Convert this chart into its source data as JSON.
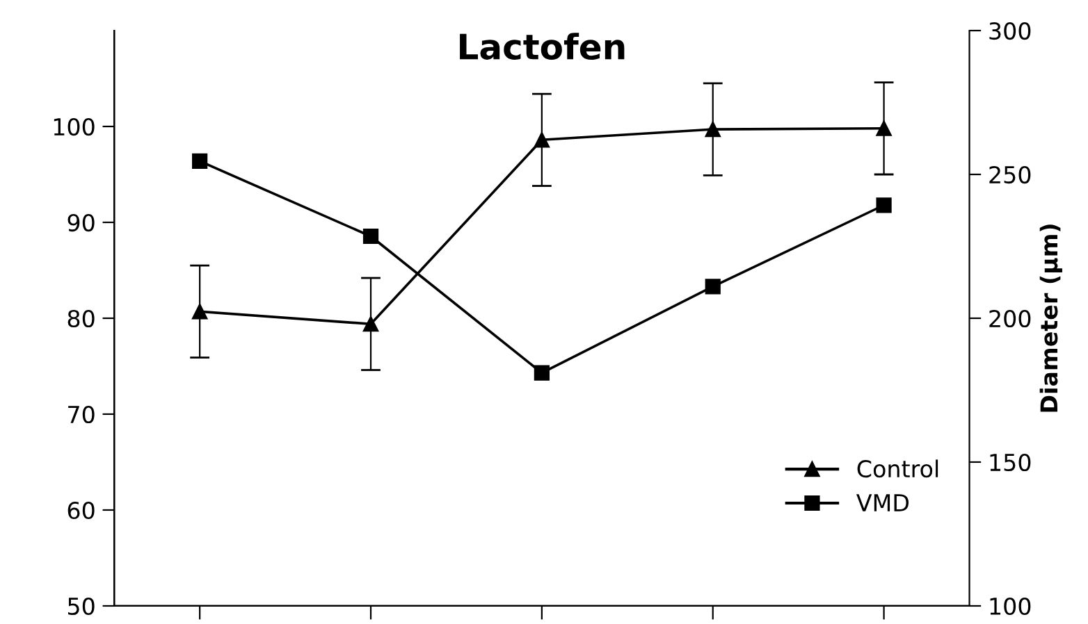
{
  "chart_data": {
    "type": "line",
    "title": "Lactofen",
    "y2label": "Diameter (µm)",
    "categories": [
      null,
      null,
      null,
      null,
      null
    ],
    "series": [
      {
        "name": "Control",
        "color": "#000000",
        "marker": "triangle",
        "values": [
          80.7,
          79.4,
          98.6,
          99.7,
          99.8
        ],
        "errors": [
          4.8,
          4.8,
          4.8,
          4.8,
          4.8
        ]
      },
      {
        "name": "VMD",
        "color": "#000000",
        "marker": "square",
        "axis": "y2",
        "values": [
          254.6,
          228.5,
          181,
          211,
          239.3
        ]
      }
    ],
    "ylim": [
      50,
      110
    ],
    "yticks": [
      50,
      60,
      70,
      80,
      90,
      100
    ],
    "y2lim": [
      100,
      300
    ],
    "y2ticks": [
      100,
      150,
      200,
      250,
      300
    ],
    "tick_labels": "y",
    "grid": false,
    "legend": "bottom right",
    "line_style": "solid"
  }
}
